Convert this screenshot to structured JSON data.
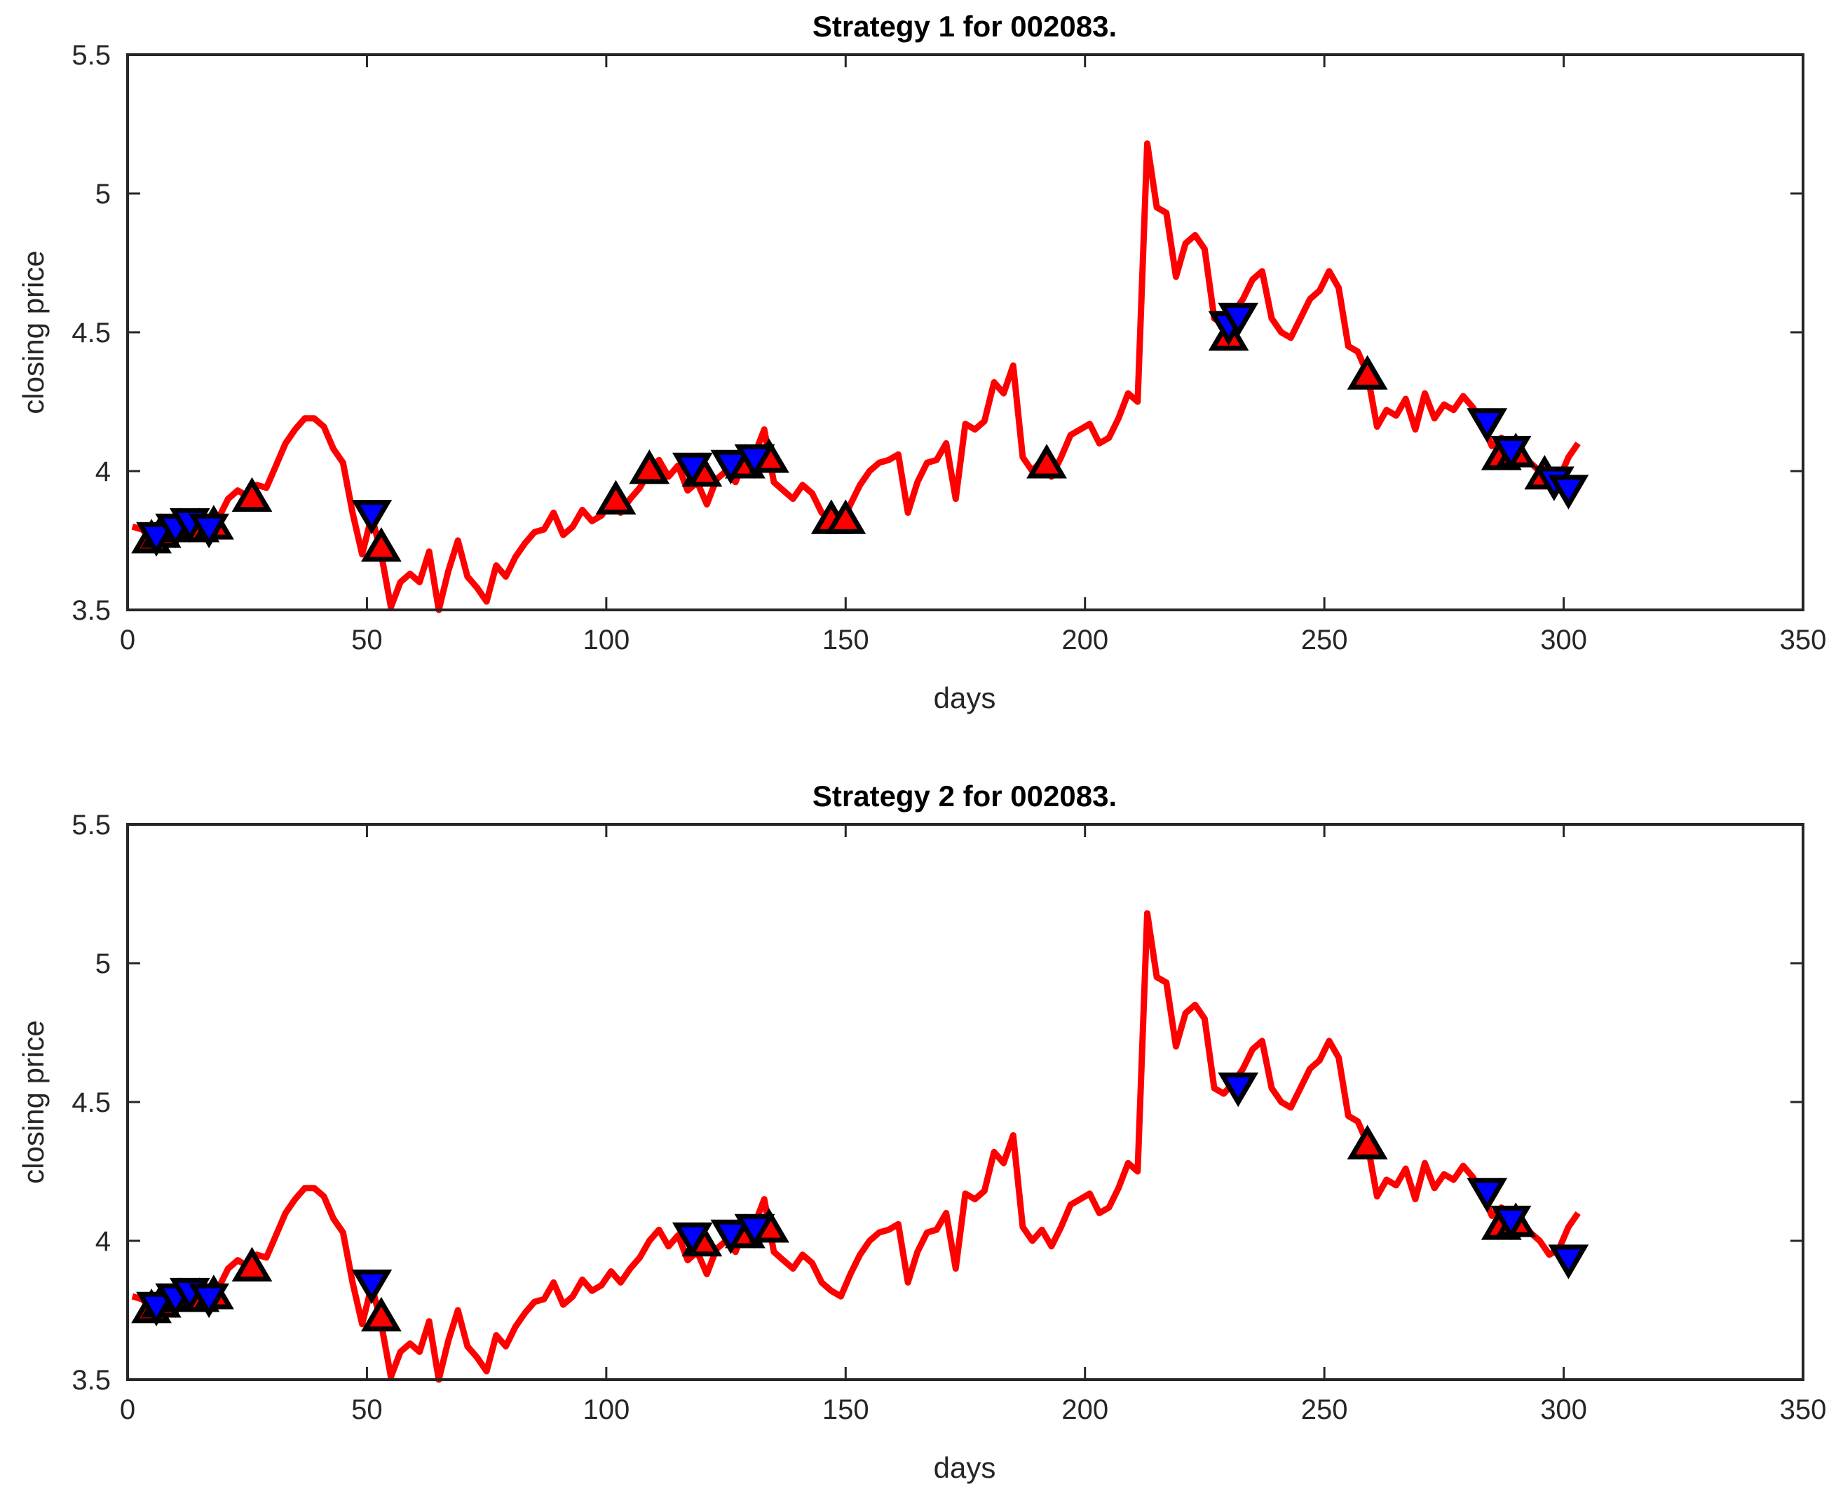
{
  "chart_data": [
    {
      "type": "line",
      "title": "Strategy 1 for 002083.",
      "xlabel": "days",
      "ylabel": "closing price",
      "xlim": [
        0,
        350
      ],
      "ylim": [
        3.5,
        5.5
      ],
      "xticks": [
        0,
        50,
        100,
        150,
        200,
        250,
        300,
        350
      ],
      "xtick_labels": [
        "0",
        "50",
        "100",
        "150",
        "200",
        "250",
        "300",
        "350"
      ],
      "yticks": [
        3.5,
        4,
        4.5,
        5,
        5.5
      ],
      "ytick_labels": [
        "3.5",
        "4",
        "4.5",
        "5",
        "5.5"
      ],
      "grid": false,
      "series": [
        {
          "name": "closing price",
          "color": "#ff0000",
          "x": [
            1,
            3,
            5,
            7,
            9,
            11,
            13,
            15,
            17,
            19,
            21,
            23,
            25,
            27,
            29,
            31,
            33,
            35,
            37,
            39,
            41,
            43,
            45,
            47,
            49,
            51,
            53,
            55,
            57,
            59,
            61,
            63,
            65,
            67,
            69,
            71,
            73,
            75,
            77,
            79,
            81,
            83,
            85,
            87,
            89,
            91,
            93,
            95,
            97,
            99,
            101,
            103,
            105,
            107,
            109,
            111,
            113,
            115,
            117,
            119,
            121,
            123,
            125,
            127,
            129,
            131,
            133,
            135,
            137,
            139,
            141,
            143,
            145,
            147,
            149,
            151,
            153,
            155,
            157,
            159,
            161,
            163,
            165,
            167,
            169,
            171,
            173,
            175,
            177,
            179,
            181,
            183,
            185,
            187,
            189,
            191,
            193,
            195,
            197,
            199,
            201,
            203,
            205,
            207,
            209,
            211,
            213,
            215,
            217,
            219,
            221,
            223,
            225,
            227,
            229,
            231,
            233,
            235,
            237,
            239,
            241,
            243,
            245,
            247,
            249,
            251,
            253,
            255,
            257,
            259,
            261,
            263,
            265,
            267,
            269,
            271,
            273,
            275,
            277,
            279,
            281,
            283,
            285,
            287,
            289,
            291,
            293,
            295,
            297,
            299,
            301,
            303
          ],
          "y": [
            3.8,
            3.79,
            3.76,
            3.78,
            3.8,
            3.77,
            3.84,
            3.8,
            3.77,
            3.83,
            3.9,
            3.93,
            3.91,
            3.95,
            3.94,
            4.02,
            4.1,
            4.15,
            4.19,
            4.19,
            4.16,
            4.08,
            4.03,
            3.85,
            3.7,
            3.84,
            3.7,
            3.51,
            3.6,
            3.63,
            3.6,
            3.71,
            3.5,
            3.64,
            3.75,
            3.62,
            3.58,
            3.53,
            3.66,
            3.62,
            3.69,
            3.74,
            3.78,
            3.79,
            3.85,
            3.77,
            3.8,
            3.86,
            3.82,
            3.84,
            3.89,
            3.85,
            3.9,
            3.94,
            4.0,
            4.04,
            3.98,
            4.02,
            3.93,
            3.96,
            3.88,
            3.97,
            4.0,
            3.96,
            4.05,
            4.06,
            4.15,
            3.96,
            3.93,
            3.9,
            3.95,
            3.92,
            3.85,
            3.82,
            3.8,
            3.88,
            3.95,
            4.0,
            4.03,
            4.04,
            4.06,
            3.85,
            3.96,
            4.03,
            4.04,
            4.1,
            3.9,
            4.17,
            4.15,
            4.18,
            4.32,
            4.28,
            4.38,
            4.05,
            4.0,
            4.04,
            3.98,
            4.05,
            4.13,
            4.15,
            4.17,
            4.1,
            4.12,
            4.19,
            4.28,
            4.25,
            5.18,
            4.95,
            4.93,
            4.7,
            4.82,
            4.85,
            4.8,
            4.55,
            4.53,
            4.57,
            4.62,
            4.69,
            4.72,
            4.55,
            4.5,
            4.48,
            4.55,
            4.62,
            4.65,
            4.72,
            4.66,
            4.45,
            4.43,
            4.35,
            4.16,
            4.22,
            4.2,
            4.26,
            4.15,
            4.28,
            4.19,
            4.24,
            4.22,
            4.27,
            4.23,
            4.17,
            4.09,
            4.12,
            4.05,
            4.08,
            4.03,
            4.0,
            3.95,
            3.97,
            4.05,
            4.1
          ]
        }
      ],
      "markers": {
        "buy": {
          "symbol": "triangle-up",
          "color": "#ff0000",
          "edge": "#000000",
          "x": [
            5,
            7,
            11,
            15,
            18,
            26,
            53,
            102,
            109,
            120,
            129,
            134,
            147,
            150,
            192,
            230,
            259,
            287,
            290,
            296
          ],
          "y": [
            3.75,
            3.77,
            3.79,
            3.79,
            3.8,
            3.9,
            3.72,
            3.89,
            4.0,
            3.99,
            4.02,
            4.04,
            3.82,
            3.82,
            4.02,
            4.48,
            4.34,
            4.05,
            4.06,
            3.98
          ]
        },
        "sell": {
          "symbol": "triangle-down",
          "color": "#0000ff",
          "edge": "#000000",
          "x": [
            6,
            10,
            13,
            17,
            51,
            118,
            126,
            131,
            230,
            232,
            284,
            289,
            298,
            301
          ],
          "y": [
            3.77,
            3.8,
            3.82,
            3.8,
            3.85,
            4.02,
            4.03,
            4.05,
            4.53,
            4.56,
            4.18,
            4.08,
            3.97,
            3.94
          ]
        }
      }
    },
    {
      "type": "line",
      "title": "Strategy 2 for 002083.",
      "xlabel": "days",
      "ylabel": "closing price",
      "xlim": [
        0,
        350
      ],
      "ylim": [
        3.5,
        5.5
      ],
      "xticks": [
        0,
        50,
        100,
        150,
        200,
        250,
        300,
        350
      ],
      "xtick_labels": [
        "0",
        "50",
        "100",
        "150",
        "200",
        "250",
        "300",
        "350"
      ],
      "yticks": [
        3.5,
        4,
        4.5,
        5,
        5.5
      ],
      "ytick_labels": [
        "3.5",
        "4",
        "4.5",
        "5",
        "5.5"
      ],
      "grid": false,
      "series": [
        {
          "name": "closing price",
          "color": "#ff0000",
          "x": [
            1,
            3,
            5,
            7,
            9,
            11,
            13,
            15,
            17,
            19,
            21,
            23,
            25,
            27,
            29,
            31,
            33,
            35,
            37,
            39,
            41,
            43,
            45,
            47,
            49,
            51,
            53,
            55,
            57,
            59,
            61,
            63,
            65,
            67,
            69,
            71,
            73,
            75,
            77,
            79,
            81,
            83,
            85,
            87,
            89,
            91,
            93,
            95,
            97,
            99,
            101,
            103,
            105,
            107,
            109,
            111,
            113,
            115,
            117,
            119,
            121,
            123,
            125,
            127,
            129,
            131,
            133,
            135,
            137,
            139,
            141,
            143,
            145,
            147,
            149,
            151,
            153,
            155,
            157,
            159,
            161,
            163,
            165,
            167,
            169,
            171,
            173,
            175,
            177,
            179,
            181,
            183,
            185,
            187,
            189,
            191,
            193,
            195,
            197,
            199,
            201,
            203,
            205,
            207,
            209,
            211,
            213,
            215,
            217,
            219,
            221,
            223,
            225,
            227,
            229,
            231,
            233,
            235,
            237,
            239,
            241,
            243,
            245,
            247,
            249,
            251,
            253,
            255,
            257,
            259,
            261,
            263,
            265,
            267,
            269,
            271,
            273,
            275,
            277,
            279,
            281,
            283,
            285,
            287,
            289,
            291,
            293,
            295,
            297,
            299,
            301,
            303
          ],
          "y": [
            3.8,
            3.79,
            3.76,
            3.78,
            3.8,
            3.77,
            3.84,
            3.8,
            3.77,
            3.83,
            3.9,
            3.93,
            3.91,
            3.95,
            3.94,
            4.02,
            4.1,
            4.15,
            4.19,
            4.19,
            4.16,
            4.08,
            4.03,
            3.85,
            3.7,
            3.84,
            3.7,
            3.51,
            3.6,
            3.63,
            3.6,
            3.71,
            3.5,
            3.64,
            3.75,
            3.62,
            3.58,
            3.53,
            3.66,
            3.62,
            3.69,
            3.74,
            3.78,
            3.79,
            3.85,
            3.77,
            3.8,
            3.86,
            3.82,
            3.84,
            3.89,
            3.85,
            3.9,
            3.94,
            4.0,
            4.04,
            3.98,
            4.02,
            3.93,
            3.96,
            3.88,
            3.97,
            4.0,
            3.96,
            4.05,
            4.06,
            4.15,
            3.96,
            3.93,
            3.9,
            3.95,
            3.92,
            3.85,
            3.82,
            3.8,
            3.88,
            3.95,
            4.0,
            4.03,
            4.04,
            4.06,
            3.85,
            3.96,
            4.03,
            4.04,
            4.1,
            3.9,
            4.17,
            4.15,
            4.18,
            4.32,
            4.28,
            4.38,
            4.05,
            4.0,
            4.04,
            3.98,
            4.05,
            4.13,
            4.15,
            4.17,
            4.1,
            4.12,
            4.19,
            4.28,
            4.25,
            5.18,
            4.95,
            4.93,
            4.7,
            4.82,
            4.85,
            4.8,
            4.55,
            4.53,
            4.57,
            4.62,
            4.69,
            4.72,
            4.55,
            4.5,
            4.48,
            4.55,
            4.62,
            4.65,
            4.72,
            4.66,
            4.45,
            4.43,
            4.35,
            4.16,
            4.22,
            4.2,
            4.26,
            4.15,
            4.28,
            4.19,
            4.24,
            4.22,
            4.27,
            4.23,
            4.17,
            4.09,
            4.12,
            4.05,
            4.08,
            4.03,
            4.0,
            3.95,
            3.97,
            4.05,
            4.1
          ]
        }
      ],
      "markers": {
        "buy": {
          "symbol": "triangle-up",
          "color": "#ff0000",
          "edge": "#000000",
          "x": [
            5,
            7,
            11,
            15,
            18,
            26,
            53,
            120,
            129,
            134,
            259,
            287,
            290
          ],
          "y": [
            3.75,
            3.77,
            3.79,
            3.79,
            3.8,
            3.9,
            3.72,
            3.99,
            4.02,
            4.04,
            4.34,
            4.05,
            4.06
          ]
        },
        "sell": {
          "symbol": "triangle-down",
          "color": "#0000ff",
          "edge": "#000000",
          "x": [
            6,
            10,
            13,
            17,
            51,
            118,
            126,
            131,
            232,
            284,
            289,
            301
          ],
          "y": [
            3.77,
            3.8,
            3.82,
            3.8,
            3.85,
            4.02,
            4.03,
            4.05,
            4.56,
            4.18,
            4.08,
            3.94
          ]
        }
      }
    }
  ]
}
